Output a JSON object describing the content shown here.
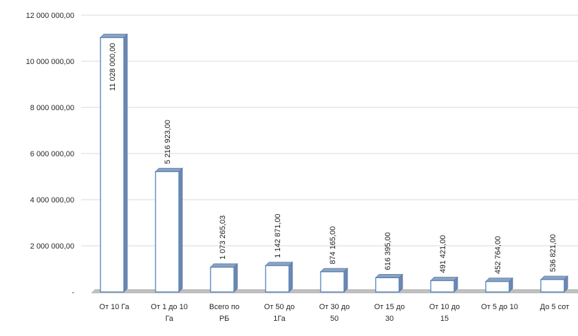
{
  "chart_data": {
    "type": "bar",
    "style": "3d-column",
    "categories": [
      [
        "От 10 Га"
      ],
      [
        "От 1 до 10",
        "Га"
      ],
      [
        "Всего по",
        "РБ"
      ],
      [
        "От 50 до",
        "1Га"
      ],
      [
        "От 30 до",
        "50"
      ],
      [
        "От 15 до",
        "30"
      ],
      [
        "От 10 до",
        "15"
      ],
      [
        "От 5 до 10"
      ],
      [
        "До 5 сот"
      ]
    ],
    "values": [
      11028000,
      5216923,
      1073265.03,
      1142871,
      874165,
      616395,
      491421,
      452764,
      536821
    ],
    "data_labels": [
      "11 028 000,00",
      "5 216 923,00",
      "1 073 265,03",
      "1 142 871,00",
      "874 165,00",
      "616 395,00",
      "491 421,00",
      "452 764,00",
      "536 821,00"
    ],
    "y_ticks": [
      0,
      2000000,
      4000000,
      6000000,
      8000000,
      10000000,
      12000000
    ],
    "y_tick_labels": [
      "-",
      "2 000 000,00",
      "4 000 000,00",
      "6 000 000,00",
      "8 000 000,00",
      "10 000 000,00",
      "12 000 000,00"
    ],
    "ylim": [
      0,
      12000000
    ],
    "grid": true,
    "legend": "none",
    "title": "",
    "xlabel": "",
    "ylabel": "",
    "colors": {
      "bar_outline": "#4f81bd",
      "bar_top": "#8ea2bd",
      "bar_side": "#6f88b0",
      "floor": "#bfbfbf",
      "grid": "#d9d9d9"
    }
  }
}
